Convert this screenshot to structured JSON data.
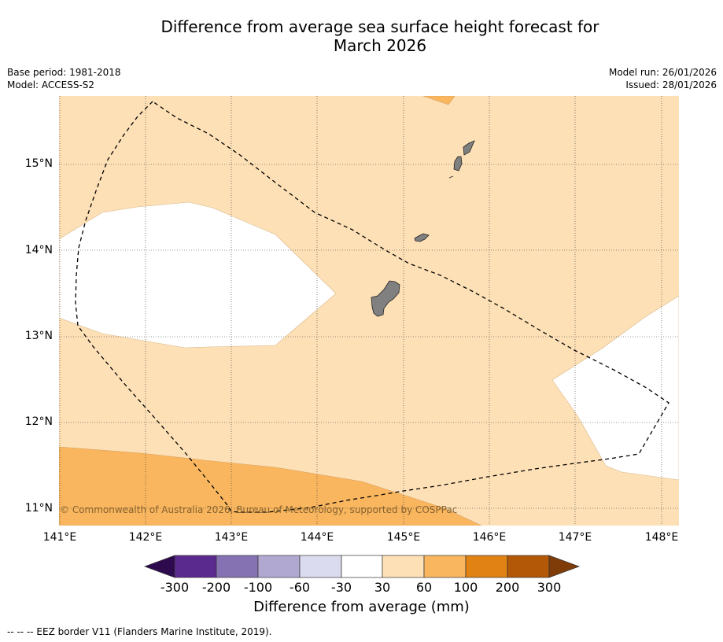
{
  "title": {
    "line1": "Difference from average sea surface height forecast for",
    "line2": "March 2026"
  },
  "meta": {
    "base_period": "Base period: 1981-2018",
    "model": "Model: ACCESS-S2",
    "model_run": "Model run: 26/01/2026",
    "issued": "Issued: 28/01/2026"
  },
  "map": {
    "region": "Guam and Northern Mariana Islands",
    "lon_range": [
      141.0,
      148.2
    ],
    "lat_range": [
      10.8,
      15.8
    ],
    "lat_labels": [
      "15°N",
      "14°N",
      "13°N",
      "12°N",
      "11°N"
    ],
    "lon_labels": [
      "141°E",
      "142°E",
      "143°E",
      "144°E",
      "145°E",
      "146°E",
      "147°E",
      "148°E"
    ],
    "colors": {
      "band_neg30_30": "#ffffff",
      "band_30_60": "#fde0b6",
      "band_60_100": "#f9b65f",
      "land": "#808080",
      "grid": "#333333"
    },
    "copyright": "© Commonwealth of Australia 2026, Bureau of Meteorology, supported by COSPPac"
  },
  "colorbar": {
    "tick_labels": [
      "-300",
      "-200",
      "-100",
      "-60",
      "-30",
      "30",
      "60",
      "100",
      "200",
      "300"
    ],
    "colors": [
      "#2d0a4e",
      "#5b2a8f",
      "#8472b2",
      "#b1a8d2",
      "#dadbee",
      "#ffffff",
      "#fde0b6",
      "#f9b65f",
      "#e08214",
      "#b35806",
      "#7f3b08"
    ],
    "title": "Difference from average (mm)"
  },
  "footnote": "--  --  -- EEZ border V11 (Flanders Marine Institute, 2019)."
}
